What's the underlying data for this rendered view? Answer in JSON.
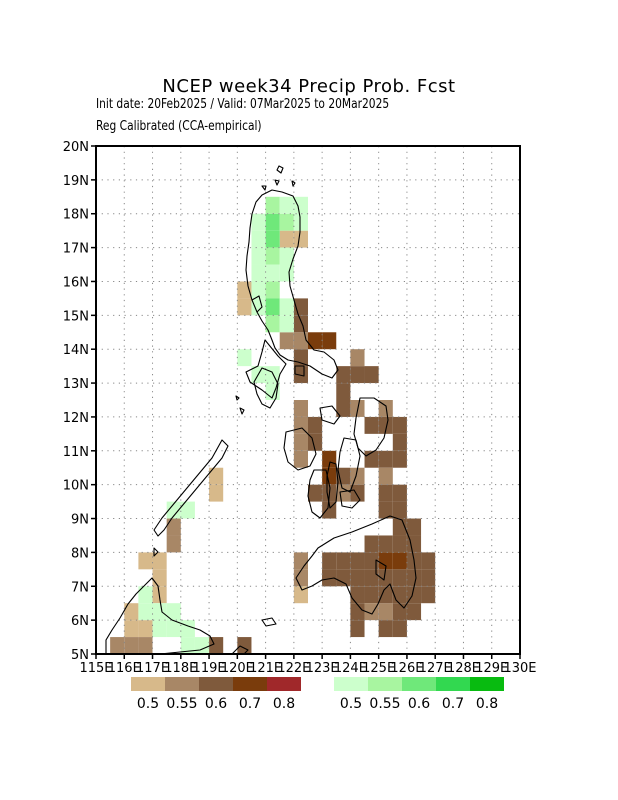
{
  "title": "NCEP  week34  Precip  Prob.  Fcst",
  "subtitle_dates": "Init date: 20Feb2025 / Valid: 07Mar2025 to 20Mar2025",
  "subtitle_method": "Reg Calibrated (CCA-empirical)",
  "map": {
    "lat_range": [
      5,
      20
    ],
    "lon_range": [
      115,
      130
    ],
    "grid": "dotted",
    "lat_labels": [
      "5N",
      "6N",
      "7N",
      "8N",
      "9N",
      "10N",
      "11N",
      "12N",
      "13N",
      "14N",
      "15N",
      "16N",
      "17N",
      "18N",
      "19N",
      "20N"
    ],
    "lon_labels": [
      "115E",
      "116E",
      "117E",
      "118E",
      "119E",
      "120E",
      "121E",
      "122E",
      "123E",
      "124E",
      "125E",
      "126E",
      "127E",
      "128E",
      "129E",
      "130E"
    ]
  },
  "legend": {
    "below": {
      "colors": [
        "#d7b98a",
        "#a88766",
        "#7f5a3c",
        "#7a3c0c",
        "#a0282a"
      ],
      "labels": [
        "0.5",
        "0.55",
        "0.6",
        "0.7",
        "0.8"
      ]
    },
    "above": {
      "colors": [
        "#ccffcc",
        "#a8f5a0",
        "#6fe87a",
        "#32d850",
        "#08bb10"
      ],
      "labels": [
        "0.5",
        "0.55",
        "0.6",
        "0.7",
        "0.8"
      ]
    }
  },
  "chart_data": {
    "type": "heatmap",
    "cell_size_deg": 0.5,
    "value_scale": "probability category (0=0.5-0.55, 1=0.55-0.6, 2=0.6-0.7, 3=0.7-0.8)",
    "cells_below": [
      [
        119,
        5,
        2
      ],
      [
        120,
        5,
        2
      ],
      [
        117.5,
        8,
        1
      ],
      [
        117.5,
        8.5,
        1
      ],
      [
        119,
        9.5,
        0
      ],
      [
        119,
        10,
        0
      ],
      [
        121.5,
        17,
        0
      ],
      [
        122,
        17,
        0
      ],
      [
        120,
        15,
        0
      ],
      [
        120,
        15.5,
        0
      ],
      [
        121.5,
        14,
        1
      ],
      [
        122,
        14,
        1
      ],
      [
        122,
        13,
        2
      ],
      [
        122,
        13.5,
        2
      ],
      [
        122,
        14.5,
        2
      ],
      [
        122,
        15,
        2
      ],
      [
        122.5,
        14,
        3
      ],
      [
        123,
        14,
        3
      ],
      [
        123.5,
        13,
        2
      ],
      [
        124,
        13,
        2
      ],
      [
        124,
        13.5,
        1
      ],
      [
        124.5,
        13,
        2
      ],
      [
        123.5,
        12,
        2
      ],
      [
        124,
        12,
        1
      ],
      [
        123.5,
        12.5,
        2
      ],
      [
        122,
        10.5,
        1
      ],
      [
        122,
        11,
        1
      ],
      [
        122,
        11.5,
        1
      ],
      [
        122,
        12,
        1
      ],
      [
        122.5,
        11,
        2
      ],
      [
        122.5,
        11.5,
        2
      ],
      [
        122.5,
        9.5,
        2
      ],
      [
        123,
        9,
        2
      ],
      [
        123,
        9.5,
        2
      ],
      [
        123,
        10,
        3
      ],
      [
        123,
        10.5,
        3
      ],
      [
        123.5,
        10,
        2
      ],
      [
        123.5,
        9.5,
        1
      ],
      [
        124,
        9.5,
        2
      ],
      [
        124,
        10,
        1
      ],
      [
        124.5,
        11.5,
        2
      ],
      [
        125,
        11.5,
        2
      ],
      [
        125,
        12,
        1
      ],
      [
        125.5,
        11,
        2
      ],
      [
        125.5,
        11.5,
        2
      ],
      [
        125,
        10.5,
        2
      ],
      [
        125.5,
        10.5,
        2
      ],
      [
        125,
        10,
        1
      ],
      [
        124.5,
        10.5,
        2
      ],
      [
        125,
        9.5,
        2
      ],
      [
        125.5,
        9.5,
        2
      ],
      [
        125,
        9,
        2
      ],
      [
        125.5,
        9,
        2
      ],
      [
        122,
        7,
        1
      ],
      [
        122,
        7.5,
        1
      ],
      [
        122,
        6.5,
        0
      ],
      [
        123,
        7,
        2
      ],
      [
        123,
        7.5,
        2
      ],
      [
        123.5,
        7,
        2
      ],
      [
        123.5,
        7.5,
        2
      ],
      [
        124,
        7,
        2
      ],
      [
        124,
        7.5,
        2
      ],
      [
        124.5,
        7.5,
        2
      ],
      [
        125,
        7.5,
        3
      ],
      [
        125.5,
        7.5,
        3
      ],
      [
        126,
        7.5,
        2
      ],
      [
        126.5,
        7.5,
        2
      ],
      [
        124.5,
        8,
        2
      ],
      [
        125,
        8,
        2
      ],
      [
        125.5,
        8,
        2
      ],
      [
        126,
        8,
        2
      ],
      [
        126,
        8.5,
        2
      ],
      [
        125.5,
        8.5,
        2
      ],
      [
        123,
        7,
        2
      ],
      [
        124,
        6,
        2
      ],
      [
        124,
        6.5,
        2
      ],
      [
        124.5,
        6.5,
        2
      ],
      [
        124.5,
        6,
        1
      ],
      [
        125,
        6,
        1
      ],
      [
        125,
        6.5,
        2
      ],
      [
        125.5,
        6.5,
        2
      ],
      [
        125.5,
        6,
        2
      ],
      [
        126,
        6,
        2
      ],
      [
        126,
        6.5,
        2
      ],
      [
        126,
        7,
        2
      ],
      [
        126.5,
        6.5,
        2
      ],
      [
        126.5,
        7,
        2
      ],
      [
        125,
        7,
        2
      ],
      [
        125.5,
        7,
        2
      ],
      [
        124.5,
        7,
        2
      ],
      [
        125.5,
        5.5,
        2
      ],
      [
        125,
        5.5,
        2
      ],
      [
        124,
        5.5,
        2
      ],
      [
        116,
        6,
        0
      ],
      [
        116,
        5.5,
        0
      ],
      [
        116.5,
        5.5,
        0
      ],
      [
        115.5,
        5,
        1
      ],
      [
        116,
        5,
        1
      ],
      [
        116.5,
        5,
        1
      ],
      [
        117,
        6.5,
        0
      ],
      [
        117,
        7,
        0
      ],
      [
        116.5,
        7.5,
        0
      ],
      [
        117,
        7.5,
        0
      ]
    ],
    "cells_above": [
      [
        121,
        17.5,
        2
      ],
      [
        121.5,
        17.5,
        1
      ],
      [
        122,
        17.5,
        0
      ],
      [
        121,
        17,
        2
      ],
      [
        121,
        16.5,
        1
      ],
      [
        121.5,
        16.5,
        0
      ],
      [
        121,
        16,
        0
      ],
      [
        121.5,
        16,
        0
      ],
      [
        121.5,
        16.5,
        0
      ],
      [
        121,
        18,
        1
      ],
      [
        121.5,
        18,
        0
      ],
      [
        122,
        18,
        0
      ],
      [
        120.5,
        17.5,
        0
      ],
      [
        120.5,
        17,
        0
      ],
      [
        120.5,
        16.5,
        0
      ],
      [
        120.5,
        16,
        0
      ],
      [
        120.5,
        15.5,
        0
      ],
      [
        121,
        15.5,
        1
      ],
      [
        121,
        15,
        2
      ],
      [
        121.5,
        15,
        0
      ],
      [
        120.5,
        15,
        0
      ],
      [
        121,
        14.5,
        1
      ],
      [
        121.5,
        14.5,
        0
      ],
      [
        120,
        13.5,
        0
      ],
      [
        120.5,
        13,
        0
      ],
      [
        121,
        12.5,
        0
      ],
      [
        121,
        13,
        0
      ],
      [
        118,
        9,
        0
      ],
      [
        117.5,
        9,
        0
      ],
      [
        116.5,
        6.5,
        0
      ],
      [
        116.5,
        6,
        0
      ],
      [
        117,
        6,
        0
      ],
      [
        117.5,
        6,
        0
      ],
      [
        117,
        5.5,
        0
      ],
      [
        117.5,
        5.5,
        0
      ],
      [
        118,
        5.5,
        0
      ],
      [
        118,
        5,
        0
      ],
      [
        118.5,
        5,
        0
      ]
    ]
  }
}
